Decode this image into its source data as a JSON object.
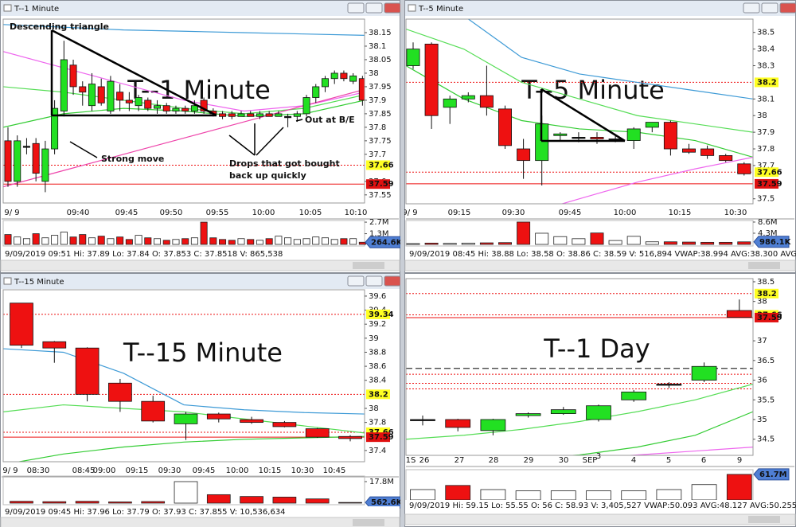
{
  "panels": [
    {
      "title": "T--1 Minute",
      "watermark": "T--1 Minute",
      "xlabels": [
        "9/ 9",
        "09:40",
        "09:45",
        "09:50",
        "09:55",
        "10:00",
        "10:05",
        "10:10"
      ],
      "ylim": [
        37.52,
        38.2
      ],
      "yticks": [
        38.15,
        38.1,
        38.05,
        38,
        37.95,
        37.9,
        37.85,
        37.8,
        37.75,
        37.7,
        37.6,
        37.55
      ],
      "price_labels": [
        {
          "value": 37.66,
          "label": "37.66",
          "style": "yellow"
        },
        {
          "value": 37.59,
          "label": "37.59",
          "style": "red"
        }
      ],
      "levels": [],
      "ma": [
        {
          "color": "#3d9ad6",
          "values": [
            38.18,
            38.17,
            38.16,
            38.155,
            38.15,
            38.145,
            38.14
          ]
        },
        {
          "color": "#ee66ee",
          "values": [
            38.08,
            38.02,
            37.96,
            37.9,
            37.86,
            37.88,
            37.93
          ]
        },
        {
          "color": "#55dd55",
          "values": [
            37.95,
            37.93,
            37.9,
            37.87,
            37.85,
            37.87,
            37.92
          ]
        },
        {
          "color": "#33cc33",
          "values": [
            37.8,
            37.85,
            37.87,
            37.86,
            37.84,
            37.85,
            37.9
          ]
        },
        {
          "color": "#ee44aa",
          "values": [
            37.58,
            37.64,
            37.7,
            37.76,
            37.82,
            37.88,
            37.94
          ]
        }
      ],
      "candles": [
        [
          37.75,
          37.8,
          37.58,
          37.6
        ],
        [
          37.6,
          37.77,
          37.58,
          37.75
        ],
        [
          37.73,
          37.76,
          37.7,
          37.73
        ],
        [
          37.74,
          37.76,
          37.6,
          37.63
        ],
        [
          37.6,
          37.75,
          37.56,
          37.72
        ],
        [
          37.72,
          37.9,
          37.7,
          37.87
        ],
        [
          37.86,
          38.12,
          37.84,
          38.05
        ],
        [
          38.03,
          38.05,
          37.92,
          37.95
        ],
        [
          37.95,
          37.97,
          37.88,
          37.93
        ],
        [
          37.88,
          38.0,
          37.86,
          37.96
        ],
        [
          37.95,
          37.98,
          37.88,
          37.89
        ],
        [
          37.86,
          37.99,
          37.85,
          37.97
        ],
        [
          37.93,
          37.96,
          37.86,
          37.9
        ],
        [
          37.9,
          37.93,
          37.86,
          37.89
        ],
        [
          37.88,
          37.92,
          37.86,
          37.91
        ],
        [
          37.9,
          37.91,
          37.86,
          37.87
        ],
        [
          37.87,
          37.9,
          37.85,
          37.88
        ],
        [
          37.88,
          37.89,
          37.85,
          37.86
        ],
        [
          37.86,
          37.88,
          37.85,
          37.87
        ],
        [
          37.87,
          37.88,
          37.85,
          37.86
        ],
        [
          37.86,
          37.9,
          37.85,
          37.88
        ],
        [
          37.9,
          37.91,
          37.85,
          37.86
        ],
        [
          37.86,
          37.87,
          37.84,
          37.85
        ],
        [
          37.85,
          37.86,
          37.83,
          37.84
        ],
        [
          37.85,
          37.86,
          37.83,
          37.84
        ],
        [
          37.84,
          37.86,
          37.84,
          37.85
        ],
        [
          37.85,
          37.86,
          37.84,
          37.84
        ],
        [
          37.84,
          37.86,
          37.83,
          37.85
        ],
        [
          37.85,
          37.86,
          37.84,
          37.84
        ],
        [
          37.84,
          37.86,
          37.84,
          37.85
        ],
        [
          37.84,
          37.85,
          37.8,
          37.84
        ],
        [
          37.84,
          37.86,
          37.82,
          37.85
        ],
        [
          37.85,
          37.92,
          37.84,
          37.91
        ],
        [
          37.91,
          37.96,
          37.89,
          37.95
        ],
        [
          37.95,
          37.99,
          37.93,
          37.98
        ],
        [
          37.98,
          38.01,
          37.96,
          38.0
        ],
        [
          38.0,
          38.01,
          37.97,
          37.98
        ],
        [
          37.97,
          38.0,
          37.96,
          37.99
        ],
        [
          37.98,
          37.99,
          37.88,
          37.9
        ]
      ],
      "volume": [
        1200000,
        900000,
        700000,
        1300000,
        800000,
        1100000,
        1500000,
        900000,
        1200000,
        800000,
        1000000,
        700000,
        900000,
        600000,
        1100000,
        800000,
        700000,
        500000,
        600000,
        700000,
        800000,
        2700000,
        800000,
        600000,
        500000,
        700000,
        600000,
        500000,
        700000,
        1000000,
        800000,
        600000,
        700000,
        900000,
        800000,
        600000,
        700000,
        700000,
        264600
      ],
      "vlim": [
        0,
        2900000
      ],
      "vticks": [
        {
          "value": 2700000,
          "label": "2.7M"
        },
        {
          "value": 1300000,
          "label": "1.3M"
        }
      ],
      "vlast": {
        "value": 264600,
        "label": "264.6K"
      },
      "info": "9/09/2019 09:51  Hi: 37.89  Lo: 37.84  O: 37.853  C: 37.8518  V: 865,538",
      "annotations": [
        "Descending triangle",
        "Strong move",
        "Drops that got bought",
        "back up quickly",
        "Out at B/E"
      ]
    },
    {
      "title": "T--5 Minute",
      "watermark": "T--5 Minute",
      "xlabels": [
        "9/ 9",
        "09:15",
        "09:30",
        "09:45",
        "10:00",
        "10:15",
        "10:30"
      ],
      "ylim": [
        37.47,
        38.58
      ],
      "yticks": [
        38.5,
        38.4,
        38.3,
        38.1,
        38,
        37.9,
        37.8,
        37.7,
        37.5
      ],
      "price_labels": [
        {
          "value": 38.2,
          "label": "38.2",
          "style": "yellow"
        },
        {
          "value": 37.66,
          "label": "37.66",
          "style": "yellow"
        },
        {
          "value": 37.59,
          "label": "37.59",
          "style": "red"
        }
      ],
      "levels": [],
      "ma": [
        {
          "color": "#3d9ad6",
          "values": [
            38.7,
            38.6,
            38.35,
            38.25,
            38.2,
            38.15,
            38.1
          ]
        },
        {
          "color": "#55dd55",
          "values": [
            38.52,
            38.4,
            38.2,
            38.1,
            38.0,
            37.95,
            37.9
          ]
        },
        {
          "color": "#33cc33",
          "values": [
            38.3,
            38.1,
            37.97,
            37.92,
            37.9,
            37.85,
            37.75
          ]
        },
        {
          "color": "#ee66ee",
          "values": [
            37.3,
            37.35,
            37.4,
            37.5,
            37.6,
            37.68,
            37.75
          ]
        }
      ],
      "candles": [
        [
          38.3,
          38.44,
          38.28,
          38.4
        ],
        [
          38.43,
          38.44,
          37.92,
          38.0
        ],
        [
          38.05,
          38.12,
          37.95,
          38.1
        ],
        [
          38.1,
          38.14,
          38.08,
          38.12
        ],
        [
          38.12,
          38.3,
          38.0,
          38.05
        ],
        [
          38.04,
          38.06,
          37.8,
          37.82
        ],
        [
          37.8,
          37.86,
          37.62,
          37.73
        ],
        [
          37.73,
          38.0,
          37.58,
          37.95
        ],
        [
          37.88,
          37.9,
          37.85,
          37.89
        ],
        [
          37.87,
          37.9,
          37.84,
          37.87
        ],
        [
          37.87,
          37.9,
          37.83,
          37.86
        ],
        [
          37.86,
          37.88,
          37.84,
          37.86
        ],
        [
          37.85,
          37.93,
          37.8,
          37.92
        ],
        [
          37.93,
          37.96,
          37.9,
          37.96
        ],
        [
          37.96,
          37.97,
          37.76,
          37.8
        ],
        [
          37.8,
          37.83,
          37.77,
          37.78
        ],
        [
          37.8,
          37.82,
          37.74,
          37.76
        ],
        [
          37.76,
          37.77,
          37.72,
          37.73
        ],
        [
          37.71,
          37.72,
          37.64,
          37.65
        ]
      ],
      "volume": [
        300000,
        500000,
        400000,
        500000,
        600000,
        700000,
        8600000,
        4300000,
        3000000,
        2200000,
        4400000,
        1500000,
        3100000,
        1000000,
        1000000,
        900000,
        800000,
        800000,
        986100
      ],
      "vlim": [
        0,
        9200000
      ],
      "vticks": [
        {
          "value": 8600000,
          "label": "8.6M"
        },
        {
          "value": 4300000,
          "label": "4.3M"
        }
      ],
      "vlast": {
        "value": 986100,
        "label": "986.1K"
      },
      "info": "9/09/2019 08:45  Hi: 38.88  Lo: 38.58  O: 38.86  C: 38.59  V: 516,894  VWAP:38.994  AVG:38.300  AVG:38.778  AV",
      "annotations": []
    },
    {
      "title": "T--15 Minute",
      "watermark": "T--15 Minute",
      "xlabels": [
        "9/ 9",
        "08:30",
        "08:45",
        "09:00",
        "09:15",
        "09:30",
        "09:45",
        "10:00",
        "10:15",
        "10:30",
        "10:45"
      ],
      "ylim": [
        37.24,
        39.69
      ],
      "yticks": [
        39.6,
        39.4,
        39.2,
        39,
        38.8,
        38.6,
        38.4,
        38,
        37.8,
        37.4
      ],
      "price_labels": [
        {
          "value": 39.34,
          "label": "39.34",
          "style": "yellow"
        },
        {
          "value": 38.2,
          "label": "38.2",
          "style": "yellow"
        },
        {
          "value": 37.66,
          "label": "37.66",
          "style": "yellow"
        },
        {
          "value": 37.59,
          "label": "37.59",
          "style": "red"
        }
      ],
      "levels": [],
      "ma": [
        {
          "color": "#3d9ad6",
          "values": [
            38.85,
            38.8,
            38.5,
            38.05,
            37.98,
            37.94,
            37.92
          ]
        },
        {
          "color": "#55dd55",
          "values": [
            37.95,
            38.05,
            38.0,
            37.95,
            37.85,
            37.75,
            37.65
          ]
        },
        {
          "color": "#33cc33",
          "values": [
            37.2,
            37.35,
            37.45,
            37.52,
            37.56,
            37.58,
            37.6
          ]
        }
      ],
      "candles": [
        [
          39.5,
          39.5,
          38.86,
          38.9
        ],
        [
          38.95,
          38.96,
          38.65,
          38.86
        ],
        [
          38.86,
          38.87,
          38.1,
          38.2
        ],
        [
          38.36,
          38.42,
          37.95,
          38.1
        ],
        [
          38.1,
          38.18,
          37.8,
          37.82
        ],
        [
          37.78,
          37.95,
          37.55,
          37.92
        ],
        [
          37.92,
          37.94,
          37.8,
          37.85
        ],
        [
          37.84,
          37.88,
          37.78,
          37.8
        ],
        [
          37.8,
          37.82,
          37.73,
          37.74
        ],
        [
          37.71,
          37.72,
          37.58,
          37.59
        ],
        [
          37.6,
          37.62,
          37.53,
          37.57
        ]
      ],
      "volume": [
        1500000,
        1200000,
        1500000,
        1000000,
        1300000,
        17800000,
        7000000,
        5500000,
        5000000,
        3500000,
        562600
      ],
      "vlim": [
        0,
        22400000
      ],
      "vticks": [
        {
          "value": 17800000,
          "label": "17.8M"
        }
      ],
      "vlast": {
        "value": 562600,
        "label": "562.6K"
      },
      "info": "9/09/2019 09:45  Hi: 37.96  Lo: 37.79  O: 37.93  C: 37.855  V: 10,536,634",
      "annotations": []
    },
    {
      "watermark": "T--1 Day",
      "xlabels": [
        "1S",
        "26",
        "27",
        "28",
        "29",
        "30",
        "SEP",
        "3",
        "4",
        "5",
        "6",
        "9"
      ],
      "ylim": [
        34.09,
        38.58
      ],
      "yticks": [
        38.5,
        38,
        37,
        36.5,
        36,
        35.5,
        35,
        34.5
      ],
      "price_labels": [
        {
          "value": 38.2,
          "label": "38.2",
          "style": "yellow"
        },
        {
          "value": 37.66,
          "label": "37.66",
          "style": "yellow"
        },
        {
          "value": 37.59,
          "label": "37.59",
          "style": "red"
        }
      ],
      "levels": [
        {
          "value": 36.3,
          "style": "dashed"
        },
        {
          "value": 36.15,
          "style": "dotted"
        },
        {
          "value": 35.92,
          "style": "dotted"
        },
        {
          "value": 35.78,
          "style": "dotted"
        }
      ],
      "ma": [
        {
          "color": "#55dd55",
          "values": [
            34.5,
            34.6,
            34.75,
            34.95,
            35.2,
            35.5,
            35.9
          ]
        },
        {
          "color": "#33cc33",
          "values": [
            33.8,
            33.9,
            34.0,
            34.1,
            34.3,
            34.6,
            35.2
          ]
        },
        {
          "color": "#ee66ee",
          "values": [
            33.9,
            33.9,
            34.0,
            34.0,
            34.1,
            34.2,
            34.3
          ]
        }
      ],
      "candles": [
        [
          35.0,
          35.1,
          34.85,
          35.0
        ],
        [
          35.0,
          35.02,
          34.7,
          34.8
        ],
        [
          34.72,
          35.02,
          34.6,
          35.0
        ],
        [
          35.1,
          35.18,
          35.05,
          35.15
        ],
        [
          35.15,
          35.32,
          35.12,
          35.25
        ],
        [
          35.0,
          35.38,
          34.95,
          35.35
        ],
        [
          35.5,
          35.75,
          35.45,
          35.7
        ],
        [
          35.9,
          35.95,
          35.8,
          35.9
        ],
        [
          36.0,
          36.45,
          35.95,
          36.35
        ],
        [
          37.77,
          38.05,
          37.6,
          37.6
        ]
      ],
      "volume": [
        25000000,
        35000000,
        25000000,
        22000000,
        22000000,
        22000000,
        22000000,
        25000000,
        37000000,
        61700000
      ],
      "vlim": [
        0,
        73000000
      ],
      "vticks": [],
      "vlast": {
        "value": 61700000,
        "label": "61.7M"
      },
      "info": "9/09/2019  Hi: 59.15  Lo: 55.55  O: 56  C: 58.93  V: 3,405,527  VWAP:50.093  AVG:48.127  AVG:50.255  AVG:49.270",
      "annotations": []
    }
  ]
}
